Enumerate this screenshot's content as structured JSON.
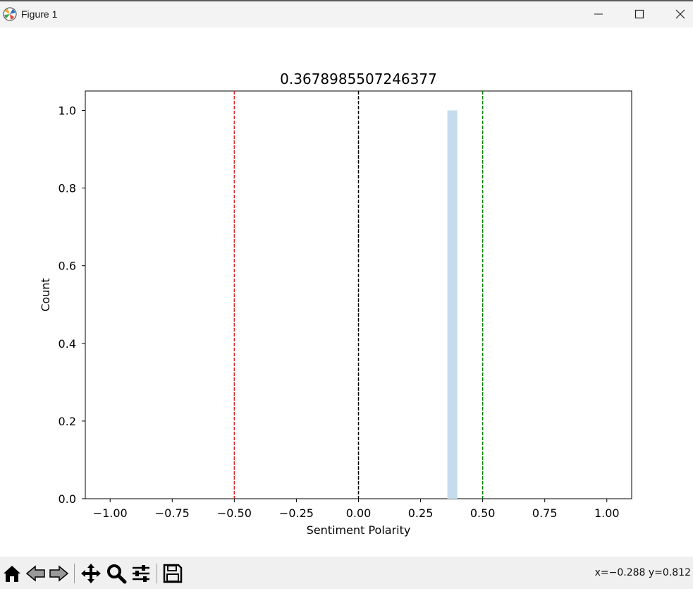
{
  "window": {
    "title": "Figure 1",
    "icon": "matplotlib-logo-icon",
    "controls": [
      "minimize-icon",
      "maximize-icon",
      "close-icon"
    ]
  },
  "toolbar": {
    "buttons": [
      "home-icon",
      "back-arrow-icon",
      "forward-arrow-icon",
      "pan-move-icon",
      "zoom-magnifier-icon",
      "configure-subplots-icon",
      "save-floppy-icon"
    ],
    "coords": "x=−0.288 y=0.812"
  },
  "chart_data": {
    "type": "bar",
    "title": "0.3678985507246377",
    "xlabel": "Sentiment Polarity",
    "ylabel": "Count",
    "xlim": [
      -1.1,
      1.1
    ],
    "ylim": [
      0.0,
      1.05
    ],
    "xticks": [
      "−1.00",
      "−0.75",
      "−0.50",
      "−0.25",
      "0.00",
      "0.25",
      "0.50",
      "0.75",
      "1.00"
    ],
    "xtick_values": [
      -1.0,
      -0.75,
      -0.5,
      -0.25,
      0.0,
      0.25,
      0.5,
      0.75,
      1.0
    ],
    "yticks": [
      "0.0",
      "0.2",
      "0.4",
      "0.6",
      "0.8",
      "1.0"
    ],
    "ytick_values": [
      0.0,
      0.2,
      0.4,
      0.6,
      0.8,
      1.0
    ],
    "bars": [
      {
        "x_start": 0.3579,
        "x_end": 0.3979,
        "value": 1.0,
        "color": "#c4dcec"
      }
    ],
    "vlines": [
      {
        "x": -0.5,
        "color": "#d62728",
        "style": "dashed"
      },
      {
        "x": 0.0,
        "color": "#000000",
        "style": "dashed"
      },
      {
        "x": 0.5,
        "color": "#008000",
        "style": "dashed"
      }
    ],
    "grid": false
  }
}
